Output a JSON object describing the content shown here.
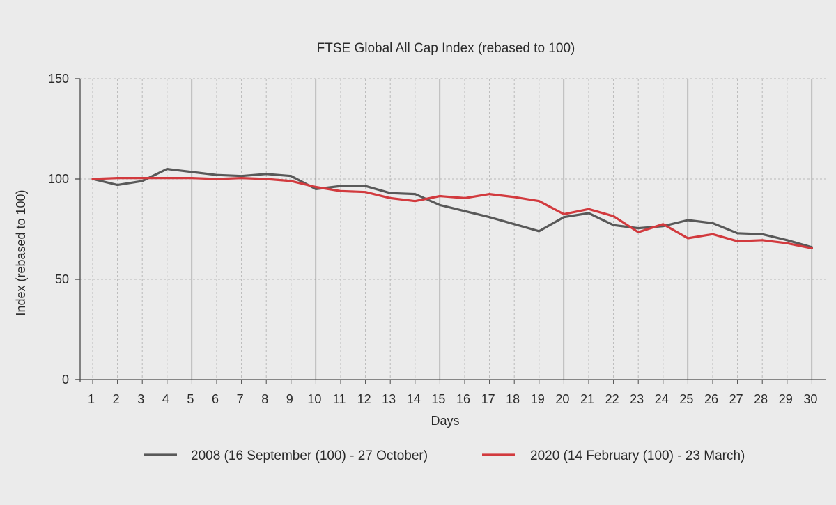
{
  "chart_data": {
    "type": "line",
    "title": "FTSE Global All Cap Index (rebased to 100)",
    "xlabel": "Days",
    "ylabel": "Index (rebased to 100)",
    "x": [
      1,
      2,
      3,
      4,
      5,
      6,
      7,
      8,
      9,
      10,
      11,
      12,
      13,
      14,
      15,
      16,
      17,
      18,
      19,
      20,
      21,
      22,
      23,
      24,
      25,
      26,
      27,
      28,
      29,
      30
    ],
    "xlim": [
      0.4,
      30.5
    ],
    "ylim": [
      0,
      150
    ],
    "yticks": [
      0,
      50,
      100,
      150
    ],
    "grid": true,
    "legend_position": "bottom",
    "series": [
      {
        "name": "2008 (16 September (100) - 27 October)",
        "color": "#595959",
        "values": [
          100,
          97,
          99,
          105,
          103.5,
          102,
          101.5,
          102.5,
          101.5,
          95,
          96.5,
          96.5,
          93,
          92.5,
          87,
          84,
          81,
          77.5,
          74,
          81,
          83,
          77,
          75.5,
          76.5,
          79.5,
          78,
          73,
          72.5,
          69.5,
          66
        ]
      },
      {
        "name": "2020 (14 February (100) - 23 March)",
        "color": "#d23a3e",
        "values": [
          100,
          100.5,
          100.5,
          100.5,
          100.5,
          100,
          100.5,
          100,
          99,
          96,
          94,
          93.5,
          90.5,
          89,
          91.5,
          90.5,
          92.5,
          91,
          89,
          82.5,
          85,
          81.5,
          73.5,
          77.5,
          70.5,
          72.5,
          69,
          69.5,
          68,
          65.5
        ]
      }
    ]
  }
}
